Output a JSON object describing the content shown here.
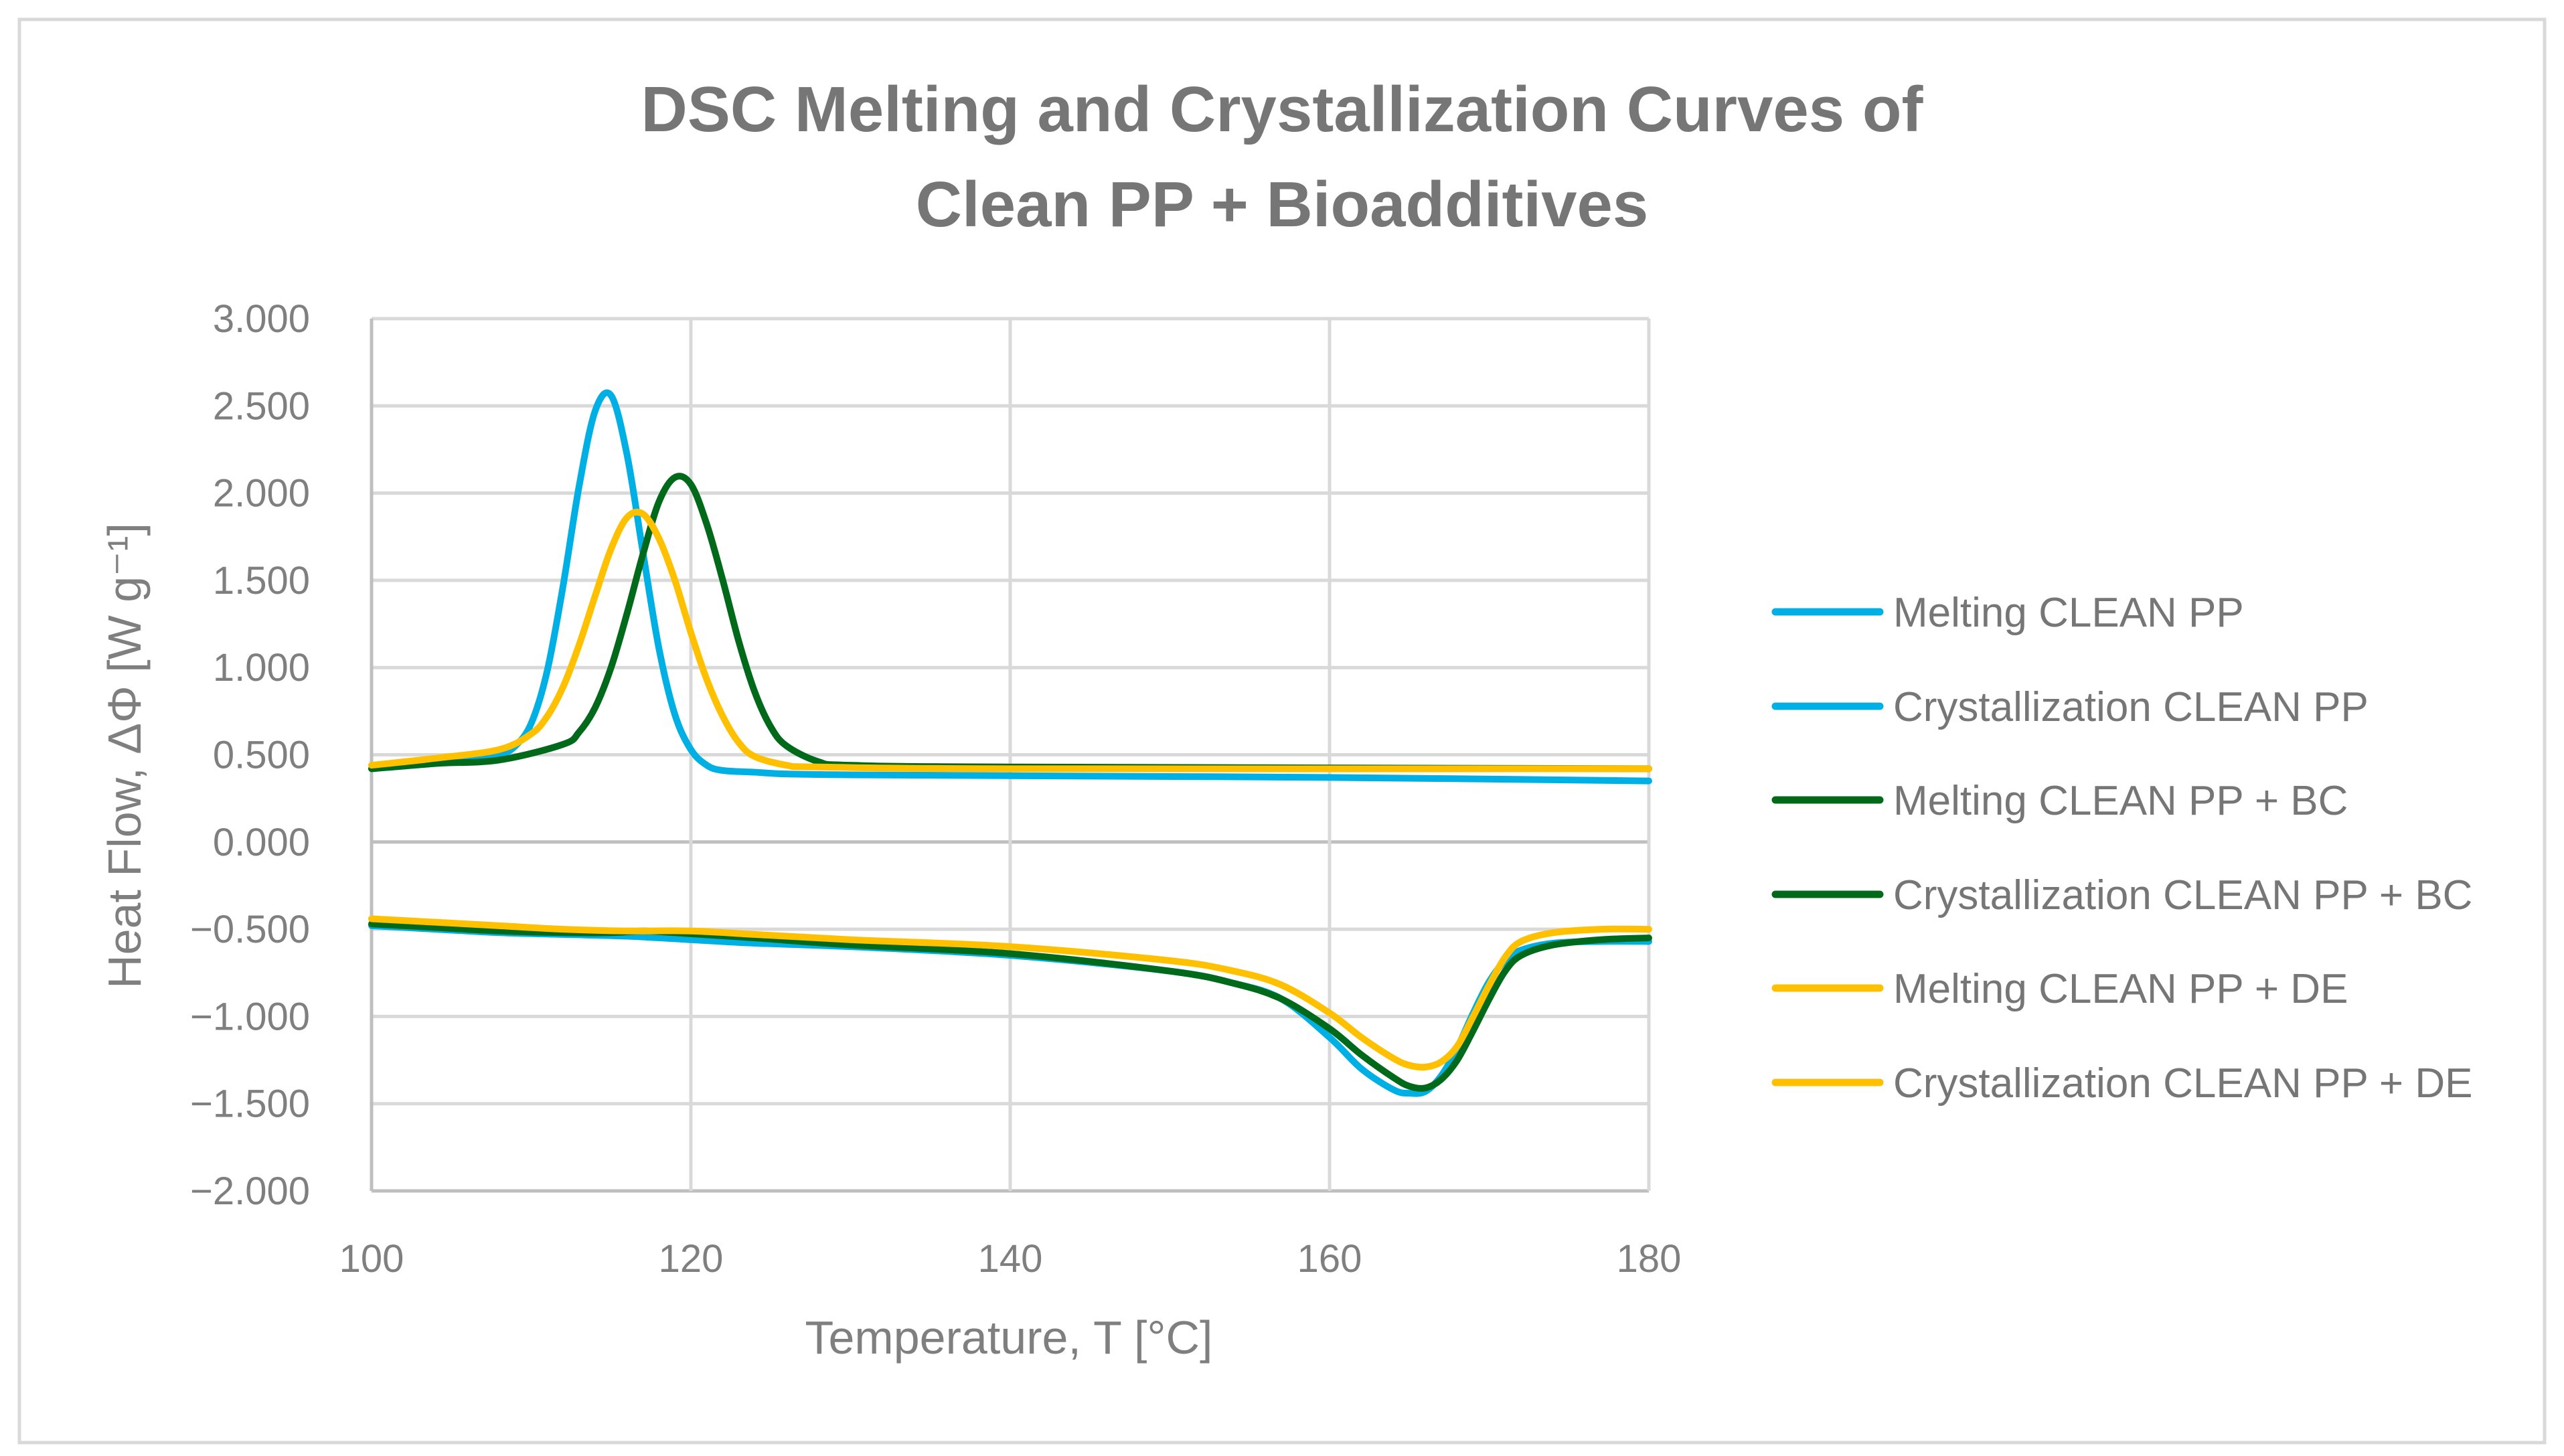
{
  "chart_data": {
    "type": "line",
    "title_lines": [
      "DSC Melting and Crystallization Curves of",
      "Clean PP + Bioadditives"
    ],
    "xlabel": "Temperature, T [°C]",
    "ylabel": "Heat Flow, ΔΦ [W g⁻¹]",
    "xlim": [
      100,
      180
    ],
    "ylim": [
      -2.0,
      3.0
    ],
    "x_ticks": [
      "100",
      "120",
      "140",
      "160",
      "180"
    ],
    "y_ticks": [
      "3.000",
      "2.500",
      "2.000",
      "1.500",
      "1.000",
      "0.500",
      "0.000",
      "−0.500",
      "−1.000",
      "−1.500",
      "−2.000"
    ],
    "grid": true,
    "legend_position": "right",
    "series": [
      {
        "name": "Melting CLEAN PP",
        "color": "#00B0E4",
        "x": [
          100,
          104,
          108,
          112,
          116,
          120,
          124,
          130,
          140,
          150,
          154,
          157,
          160,
          162,
          164,
          165,
          166,
          167,
          168,
          169,
          170,
          171,
          172,
          174,
          177,
          180
        ],
        "y": [
          -0.48,
          -0.5,
          -0.52,
          -0.53,
          -0.54,
          -0.56,
          -0.58,
          -0.6,
          -0.65,
          -0.74,
          -0.81,
          -0.9,
          -1.12,
          -1.3,
          -1.42,
          -1.44,
          -1.43,
          -1.34,
          -1.18,
          -0.98,
          -0.8,
          -0.68,
          -0.62,
          -0.58,
          -0.57,
          -0.57
        ]
      },
      {
        "name": "Crystallization CLEAN PP",
        "color": "#00B0E4",
        "x": [
          100,
          104,
          106,
          108,
          109,
          110,
          111,
          112,
          113,
          114,
          115,
          116,
          117,
          118,
          119,
          120,
          121,
          122,
          124,
          126,
          130,
          140,
          160,
          180
        ],
        "y": [
          0.42,
          0.45,
          0.47,
          0.5,
          0.55,
          0.68,
          0.98,
          1.47,
          2.04,
          2.47,
          2.56,
          2.22,
          1.66,
          1.11,
          0.73,
          0.53,
          0.44,
          0.41,
          0.4,
          0.39,
          0.385,
          0.38,
          0.37,
          0.35
        ]
      },
      {
        "name": "Melting CLEAN PP + BC",
        "color": "#006A1A",
        "x": [
          100,
          104,
          108,
          112,
          115,
          117,
          119,
          124,
          130,
          140,
          150,
          154,
          157,
          160,
          162,
          164,
          165,
          166,
          167,
          168,
          169,
          170,
          171,
          172,
          174,
          177,
          180
        ],
        "y": [
          -0.47,
          -0.49,
          -0.51,
          -0.52,
          -0.52,
          -0.51,
          -0.52,
          -0.55,
          -0.59,
          -0.64,
          -0.74,
          -0.81,
          -0.9,
          -1.07,
          -1.22,
          -1.35,
          -1.4,
          -1.41,
          -1.36,
          -1.25,
          -1.08,
          -0.9,
          -0.74,
          -0.65,
          -0.59,
          -0.56,
          -0.55
        ]
      },
      {
        "name": "Crystallization CLEAN PP + BC",
        "color": "#006A1A",
        "x": [
          100,
          104,
          108,
          112,
          113,
          114,
          115,
          116,
          117,
          118,
          119,
          120,
          121,
          122,
          123,
          124,
          125,
          126,
          128,
          130,
          140,
          180
        ],
        "y": [
          0.42,
          0.45,
          0.47,
          0.56,
          0.63,
          0.77,
          1.0,
          1.31,
          1.65,
          1.95,
          2.09,
          2.05,
          1.82,
          1.5,
          1.15,
          0.86,
          0.66,
          0.55,
          0.46,
          0.44,
          0.43,
          0.42
        ]
      },
      {
        "name": "Melting CLEAN PP + DE",
        "color": "#FFC000",
        "x": [
          100,
          104,
          108,
          112,
          116,
          120,
          124,
          130,
          140,
          150,
          154,
          157,
          160,
          162,
          164,
          165,
          166,
          167,
          168,
          169,
          170,
          171,
          172,
          174,
          177,
          180
        ],
        "y": [
          -0.44,
          -0.46,
          -0.48,
          -0.5,
          -0.51,
          -0.51,
          -0.53,
          -0.56,
          -0.6,
          -0.68,
          -0.74,
          -0.82,
          -0.98,
          -1.12,
          -1.24,
          -1.28,
          -1.29,
          -1.26,
          -1.17,
          -1.0,
          -0.82,
          -0.66,
          -0.57,
          -0.52,
          -0.5,
          -0.5
        ]
      },
      {
        "name": "Crystallization CLEAN PP + DE",
        "color": "#FFC000",
        "x": [
          100,
          104,
          108,
          110,
          111,
          112,
          113,
          114,
          115,
          116,
          117,
          118,
          119,
          120,
          121,
          122,
          123,
          124,
          126,
          128,
          140,
          180
        ],
        "y": [
          0.44,
          0.48,
          0.53,
          0.62,
          0.72,
          0.89,
          1.13,
          1.41,
          1.68,
          1.86,
          1.88,
          1.74,
          1.5,
          1.2,
          0.93,
          0.72,
          0.57,
          0.49,
          0.44,
          0.43,
          0.42,
          0.42
        ]
      }
    ]
  }
}
